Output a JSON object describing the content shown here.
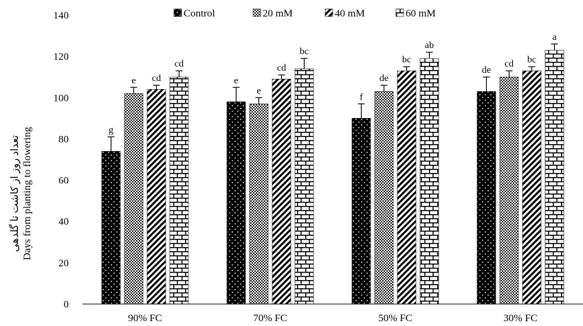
{
  "chart_data": {
    "type": "bar",
    "title": "",
    "ylabel_fa": "تعداد روز از کاشت تا گلدهی",
    "ylabel": "Days from planting to flowering",
    "xlabel": "",
    "ylim": [
      0,
      140
    ],
    "yticks": [
      0,
      20,
      40,
      60,
      80,
      100,
      120,
      140
    ],
    "grid": false,
    "legend_position": "top",
    "categories": [
      "90% FC",
      "70% FC",
      "50% FC",
      "30% FC"
    ],
    "series": [
      {
        "name": "Control",
        "pattern": "dots-on-black",
        "values": [
          74,
          98,
          90,
          103
        ],
        "errors": [
          7,
          7,
          7,
          7
        ],
        "labels": [
          "g",
          "e",
          "f",
          "de"
        ]
      },
      {
        "name": "20 mM",
        "pattern": "checker",
        "values": [
          102,
          97,
          103,
          110
        ],
        "errors": [
          3,
          3,
          3,
          3
        ],
        "labels": [
          "e",
          "e",
          "de",
          "cd"
        ]
      },
      {
        "name": "40 mM",
        "pattern": "diagonal-stripes",
        "values": [
          104,
          109,
          113,
          113
        ],
        "errors": [
          2,
          2,
          2,
          2
        ],
        "labels": [
          "cd",
          "cd",
          "bc",
          "bc"
        ]
      },
      {
        "name": "60 mM",
        "pattern": "brick",
        "values": [
          110,
          114,
          119,
          123
        ],
        "errors": [
          3,
          5,
          3,
          3
        ],
        "labels": [
          "cd",
          "bc",
          "ab",
          "a"
        ]
      }
    ]
  }
}
